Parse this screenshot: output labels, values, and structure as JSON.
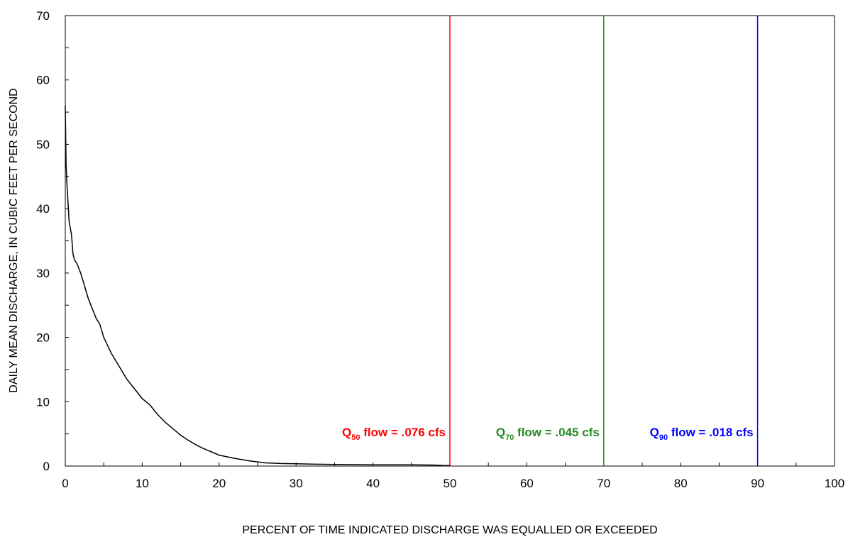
{
  "chart_data": {
    "type": "line",
    "title": "",
    "xlabel": "PERCENT OF TIME INDICATED DISCHARGE WAS EQUALLED OR EXCEEDED",
    "ylabel": "DAILY MEAN DISCHARGE, IN CUBIC FEET PER SECOND",
    "xlim": [
      0,
      100
    ],
    "ylim": [
      0,
      70
    ],
    "x_ticks": [
      0,
      10,
      20,
      30,
      40,
      50,
      60,
      70,
      80,
      90,
      100
    ],
    "y_ticks": [
      0,
      10,
      20,
      30,
      40,
      50,
      60,
      70
    ],
    "x_tick_labels": [
      "0",
      "10",
      "20",
      "30",
      "40",
      "50",
      "60",
      "70",
      "80",
      "90",
      "100"
    ],
    "y_tick_labels": [
      "0",
      "10",
      "20",
      "30",
      "40",
      "50",
      "60",
      "70"
    ],
    "grid": false,
    "series": [
      {
        "color": "#000000",
        "x": [
          0,
          0.05,
          0.1,
          0.2,
          0.3,
          0.5,
          0.8,
          1,
          1.2,
          1.5,
          2,
          2.5,
          3,
          3.5,
          4,
          4.5,
          5,
          6,
          7,
          8,
          9,
          10,
          11,
          12,
          13,
          14,
          15,
          16,
          17,
          18,
          19,
          20,
          22,
          24,
          26,
          28,
          30,
          32,
          35,
          40,
          45,
          48,
          49,
          50
        ],
        "y": [
          56,
          52,
          47,
          44,
          42,
          38,
          36,
          33,
          32,
          31.5,
          30,
          28,
          26,
          24.5,
          23,
          22,
          20,
          17.5,
          15.5,
          13.5,
          12,
          10.5,
          9.5,
          8,
          6.8,
          5.8,
          4.8,
          4,
          3.3,
          2.7,
          2.2,
          1.7,
          1.2,
          0.8,
          0.5,
          0.4,
          0.35,
          0.3,
          0.25,
          0.2,
          0.2,
          0.15,
          0.1,
          0.076
        ]
      }
    ],
    "reference_lines": [
      {
        "x": 50,
        "color": "#ff0000",
        "label_prefix": "Q",
        "label_sub": "50",
        "label_suffix": " flow = .076 cfs"
      },
      {
        "x": 70,
        "color": "#228b22",
        "label_prefix": "Q",
        "label_sub": "70",
        "label_suffix": " flow = .045 cfs"
      },
      {
        "x": 90,
        "color": "#0000ff",
        "label_prefix": "Q",
        "label_sub": "90",
        "label_suffix": " flow = .018 cfs"
      }
    ]
  }
}
